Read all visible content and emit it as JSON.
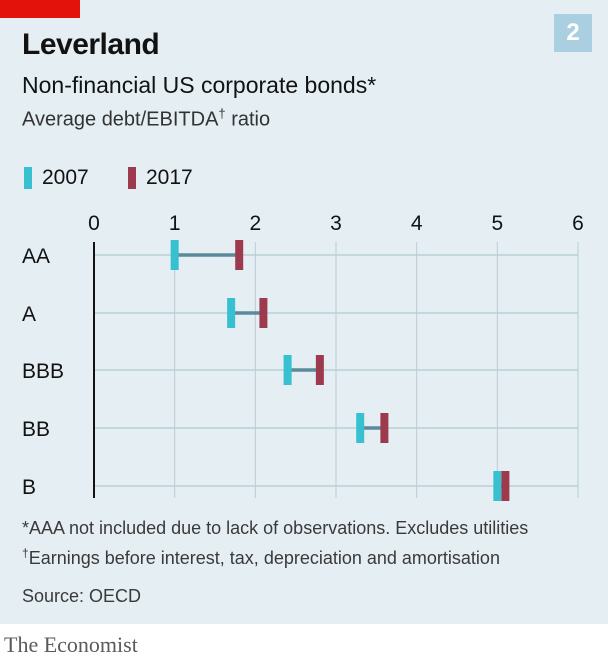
{
  "header": {
    "badge": "2",
    "title": "Leverland",
    "subtitle": "Non-financial US corporate bonds*",
    "measure": "Average debt/EBITDA",
    "measure_mark": "†",
    "measure_suffix": " ratio"
  },
  "legend": [
    {
      "label": "2007",
      "color": "#36c0d0"
    },
    {
      "label": "2017",
      "color": "#9e3a4e"
    }
  ],
  "chart_data": {
    "type": "dumbbell",
    "categories": [
      "AA",
      "A",
      "BBB",
      "BB",
      "B"
    ],
    "series": [
      {
        "name": "2007",
        "color": "#36c0d0",
        "values": [
          1.0,
          1.7,
          2.4,
          3.3,
          5.0
        ]
      },
      {
        "name": "2017",
        "color": "#9e3a4e",
        "values": [
          1.8,
          2.1,
          2.8,
          3.6,
          5.1
        ]
      }
    ],
    "xlim": [
      0,
      6
    ],
    "xticks": [
      0,
      1,
      2,
      3,
      4,
      5,
      6
    ],
    "connector_color": "#5b8a9b",
    "grid": true
  },
  "notes": {
    "footnote1": "*AAA not included due to lack of observations. Excludes utilities",
    "footnote2_mark": "†",
    "footnote2": "Earnings before interest, tax, depreciation and amortisation",
    "source": "Source: OECD"
  },
  "footer": {
    "brand": "The Economist"
  }
}
